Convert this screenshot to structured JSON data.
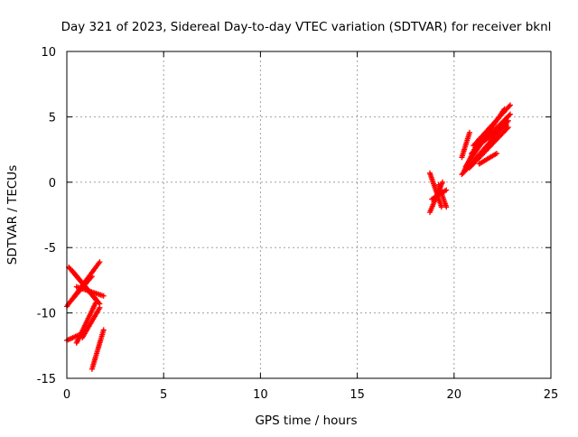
{
  "chart_data": {
    "type": "scatter",
    "title": "Day 321 of 2023, Sidereal Day-to-day VTEC variation (SDTVAR) for receiver bknl",
    "xlabel": "GPS time / hours",
    "ylabel": "SDTVAR / TECUs",
    "xlim": [
      0,
      25
    ],
    "ylim": [
      -15,
      10
    ],
    "xticks": [
      0,
      5,
      10,
      15,
      20,
      25
    ],
    "yticks": [
      -15,
      -10,
      -5,
      0,
      5,
      10
    ],
    "xtick_labels": [
      "0",
      "5",
      "10",
      "15",
      "20",
      "25"
    ],
    "ytick_labels": [
      "-15",
      "-10",
      "-5",
      "0",
      "5",
      "10"
    ],
    "grid": true,
    "marker": "+",
    "series": [
      {
        "name": "SDTVAR",
        "color": "#ff0000",
        "tracks": [
          {
            "start": [
              0.1,
              -6.5
            ],
            "end": [
              1.7,
              -9.3
            ]
          },
          {
            "start": [
              0.3,
              -6.8
            ],
            "end": [
              1.5,
              -9.0
            ]
          },
          {
            "start": [
              0.0,
              -9.5
            ],
            "end": [
              1.7,
              -6.1
            ]
          },
          {
            "start": [
              0.2,
              -9.1
            ],
            "end": [
              1.3,
              -7.2
            ]
          },
          {
            "start": [
              0.5,
              -8.0
            ],
            "end": [
              1.9,
              -8.7
            ]
          },
          {
            "start": [
              0.0,
              -12.1
            ],
            "end": [
              0.6,
              -11.7
            ]
          },
          {
            "start": [
              0.5,
              -12.3
            ],
            "end": [
              1.5,
              -9.2
            ]
          },
          {
            "start": [
              0.8,
              -11.9
            ],
            "end": [
              1.7,
              -9.6
            ]
          },
          {
            "start": [
              1.3,
              -14.3
            ],
            "end": [
              1.9,
              -11.3
            ]
          },
          {
            "start": [
              18.75,
              0.7
            ],
            "end": [
              19.35,
              -1.9
            ]
          },
          {
            "start": [
              18.75,
              -2.3
            ],
            "end": [
              19.4,
              0.0
            ]
          },
          {
            "start": [
              18.85,
              -1.3
            ],
            "end": [
              19.6,
              -0.6
            ]
          },
          {
            "start": [
              19.2,
              -0.2
            ],
            "end": [
              19.6,
              -1.9
            ]
          },
          {
            "start": [
              20.4,
              1.9
            ],
            "end": [
              20.8,
              3.8
            ]
          },
          {
            "start": [
              20.4,
              0.6
            ],
            "end": [
              21.3,
              2.0
            ]
          },
          {
            "start": [
              20.5,
              0.8
            ],
            "end": [
              21.3,
              3.3
            ]
          },
          {
            "start": [
              20.6,
              1.2
            ],
            "end": [
              22.6,
              5.6
            ]
          },
          {
            "start": [
              20.8,
              1.1
            ],
            "end": [
              22.8,
              4.2
            ]
          },
          {
            "start": [
              21.0,
              1.6
            ],
            "end": [
              22.8,
              4.7
            ]
          },
          {
            "start": [
              21.0,
              2.8
            ],
            "end": [
              22.9,
              5.9
            ]
          },
          {
            "start": [
              20.9,
              2.2
            ],
            "end": [
              22.9,
              5.2
            ]
          },
          {
            "start": [
              21.3,
              1.4
            ],
            "end": [
              22.2,
              2.2
            ]
          },
          {
            "start": [
              21.6,
              3.2
            ],
            "end": [
              22.7,
              4.4
            ]
          }
        ]
      }
    ]
  }
}
